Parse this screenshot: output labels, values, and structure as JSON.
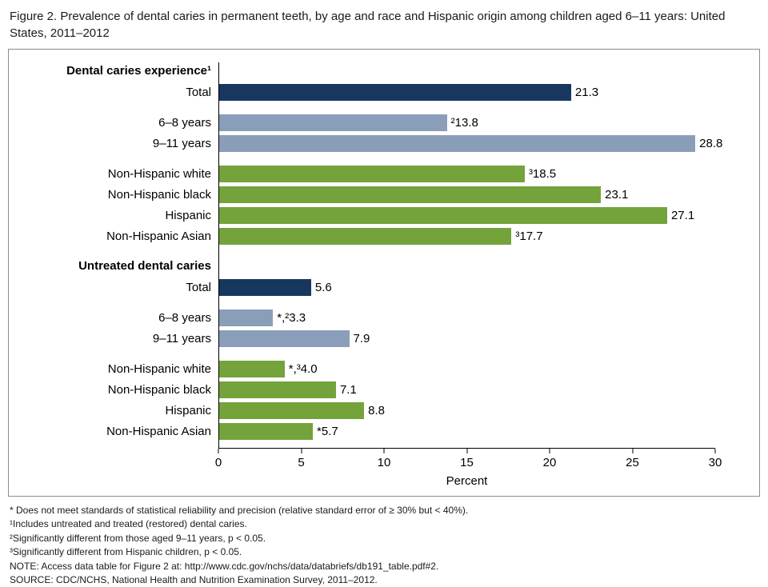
{
  "figure": {
    "title": "Figure 2. Prevalence of dental caries in permanent teeth, by age and race and Hispanic origin among children aged 6–11 years: United States, 2011–2012"
  },
  "chart_data": {
    "type": "bar",
    "orientation": "horizontal",
    "title": "Figure 2. Prevalence of dental caries in permanent teeth, by age and race and Hispanic origin among children aged 6–11 years: United States, 2011–2012",
    "xlabel": "Percent",
    "xlim": [
      0,
      30
    ],
    "xticks": [
      0,
      5,
      10,
      15,
      20,
      25,
      30
    ],
    "grid": false,
    "legend": "none",
    "colors": {
      "total": "#17375E",
      "age": "#8A9EBA",
      "race": "#74A33C"
    },
    "groups": [
      {
        "heading": "Dental caries experience¹",
        "subgroups": [
          [
            {
              "label": "Total",
              "value": 21.3,
              "display": "21.3",
              "color": "total"
            }
          ],
          [
            {
              "label": "6–8 years",
              "value": 13.8,
              "display": "²13.8",
              "color": "age"
            },
            {
              "label": "9–11 years",
              "value": 28.8,
              "display": "28.8",
              "color": "age"
            }
          ],
          [
            {
              "label": "Non-Hispanic white",
              "value": 18.5,
              "display": "³18.5",
              "color": "race"
            },
            {
              "label": "Non-Hispanic black",
              "value": 23.1,
              "display": "23.1",
              "color": "race"
            },
            {
              "label": "Hispanic",
              "value": 27.1,
              "display": "27.1",
              "color": "race"
            },
            {
              "label": "Non-Hispanic Asian",
              "value": 17.7,
              "display": "³17.7",
              "color": "race"
            }
          ]
        ]
      },
      {
        "heading": "Untreated dental caries",
        "subgroups": [
          [
            {
              "label": "Total",
              "value": 5.6,
              "display": "5.6",
              "color": "total"
            }
          ],
          [
            {
              "label": "6–8 years",
              "value": 3.3,
              "display": "*,²3.3",
              "color": "age"
            },
            {
              "label": "9–11 years",
              "value": 7.9,
              "display": "7.9",
              "color": "age"
            }
          ],
          [
            {
              "label": "Non-Hispanic white",
              "value": 4.0,
              "display": "*,³4.0",
              "color": "race"
            },
            {
              "label": "Non-Hispanic black",
              "value": 7.1,
              "display": "7.1",
              "color": "race"
            },
            {
              "label": "Hispanic",
              "value": 8.8,
              "display": "8.8",
              "color": "race"
            },
            {
              "label": "Non-Hispanic Asian",
              "value": 5.7,
              "display": "*5.7",
              "color": "race"
            }
          ]
        ]
      }
    ]
  },
  "footnotes": [
    "* Does not meet standards of statistical reliability and precision (relative standard error of ≥ 30% but < 40%).",
    "¹Includes untreated and treated (restored) dental caries.",
    "²Significantly different from those aged 9–11 years, p < 0.05.",
    "³Significantly different from Hispanic children, p < 0.05.",
    "NOTE: Access data table for Figure 2 at: http://www.cdc.gov/nchs/data/databriefs/db191_table.pdf#2.",
    "SOURCE: CDC/NCHS, National Health and Nutrition Examination Survey, 2011–2012."
  ]
}
